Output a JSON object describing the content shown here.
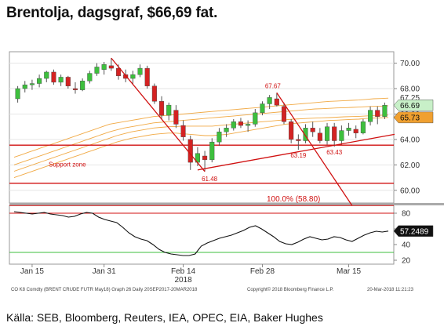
{
  "title": "Brentolja, dagsgraf, $66,69 fat.",
  "source": "Källa: SEB, Bloomberg, Reuters, IEA, OPEC, EIA, Baker Hughes",
  "footer": {
    "left": "CO K8 Comdty (BRENT CRUDE FUTR  May18) Graph 26  Daily 20SEP2017-20MAR2018",
    "center": "Copyright© 2018 Bloomberg Finance L.P.",
    "right": "20-Mar-2018 11:21:23"
  },
  "colors": {
    "up": "#3dbf3d",
    "down": "#d42222",
    "trend": "#d01010",
    "ma": "#f0a030",
    "osc": "#111111",
    "price_tag_bg": "#c8f0c8",
    "ma_tag_bg": "#f0a030",
    "osc_tag_bg": "#111111"
  },
  "chart_data": [
    {
      "type": "candlestick",
      "ylim": [
        59.0,
        70.9
      ],
      "y_ticks": [
        "70.00",
        "68.00",
        "66.00",
        "64.00",
        "62.00",
        "60.00"
      ],
      "x_tick_labels": [
        "Jan 15",
        "Jan 31",
        "Feb 14",
        "Feb 28",
        "Mar 15"
      ],
      "x_sublabel": "2018",
      "last_price_label": "66.69",
      "ma_label": "65.73",
      "ma_label_2": "67.25",
      "annotations": [
        {
          "text": "67.67",
          "value": 67.67
        },
        {
          "text": "61.48",
          "value": 61.48
        },
        {
          "text": "63.19",
          "value": 63.19
        },
        {
          "text": "63.43",
          "value": 63.43
        },
        {
          "text": "Support zone",
          "value": 62.0
        },
        {
          "text": "100.0% (58.80)",
          "value": 58.8
        }
      ],
      "horizontal_lines": [
        63.55,
        60.55
      ],
      "candles": [
        {
          "o": 67.2,
          "h": 68.2,
          "l": 66.9,
          "c": 68.0
        },
        {
          "o": 68.0,
          "h": 68.6,
          "l": 67.7,
          "c": 68.3
        },
        {
          "o": 68.3,
          "h": 68.7,
          "l": 67.9,
          "c": 68.4
        },
        {
          "o": 68.4,
          "h": 69.1,
          "l": 68.1,
          "c": 68.8
        },
        {
          "o": 68.8,
          "h": 69.4,
          "l": 68.5,
          "c": 69.3
        },
        {
          "o": 69.3,
          "h": 69.5,
          "l": 68.3,
          "c": 68.5
        },
        {
          "o": 68.5,
          "h": 69.1,
          "l": 68.2,
          "c": 68.9
        },
        {
          "o": 68.9,
          "h": 69.0,
          "l": 68.0,
          "c": 68.2
        },
        {
          "o": 68.0,
          "h": 68.5,
          "l": 67.6,
          "c": 67.9
        },
        {
          "o": 67.9,
          "h": 68.8,
          "l": 67.8,
          "c": 68.6
        },
        {
          "o": 68.6,
          "h": 69.4,
          "l": 68.4,
          "c": 69.2
        },
        {
          "o": 69.2,
          "h": 70.0,
          "l": 69.0,
          "c": 69.7
        },
        {
          "o": 69.5,
          "h": 70.1,
          "l": 69.1,
          "c": 69.9
        },
        {
          "o": 69.8,
          "h": 70.4,
          "l": 69.4,
          "c": 69.6
        },
        {
          "o": 69.6,
          "h": 69.9,
          "l": 68.7,
          "c": 69.0
        },
        {
          "o": 69.1,
          "h": 69.5,
          "l": 68.5,
          "c": 68.8
        },
        {
          "o": 68.8,
          "h": 69.4,
          "l": 68.3,
          "c": 69.1
        },
        {
          "o": 69.1,
          "h": 69.9,
          "l": 68.9,
          "c": 69.6
        },
        {
          "o": 69.6,
          "h": 69.8,
          "l": 68.0,
          "c": 68.2
        },
        {
          "o": 68.2,
          "h": 68.4,
          "l": 66.8,
          "c": 67.0
        },
        {
          "o": 67.0,
          "h": 67.4,
          "l": 65.6,
          "c": 65.9
        },
        {
          "o": 65.9,
          "h": 66.9,
          "l": 65.5,
          "c": 66.7
        },
        {
          "o": 66.3,
          "h": 66.7,
          "l": 64.9,
          "c": 65.2
        },
        {
          "o": 65.1,
          "h": 65.5,
          "l": 63.9,
          "c": 64.2
        },
        {
          "o": 64.0,
          "h": 64.3,
          "l": 61.6,
          "c": 62.2
        },
        {
          "o": 62.2,
          "h": 63.4,
          "l": 61.9,
          "c": 62.9
        },
        {
          "o": 62.7,
          "h": 63.1,
          "l": 61.48,
          "c": 62.4
        },
        {
          "o": 62.4,
          "h": 64.1,
          "l": 62.2,
          "c": 63.8
        },
        {
          "o": 63.8,
          "h": 64.9,
          "l": 63.5,
          "c": 64.6
        },
        {
          "o": 64.6,
          "h": 65.2,
          "l": 64.2,
          "c": 64.9
        },
        {
          "o": 64.9,
          "h": 65.6,
          "l": 64.7,
          "c": 65.4
        },
        {
          "o": 65.4,
          "h": 65.7,
          "l": 64.9,
          "c": 65.1
        },
        {
          "o": 65.1,
          "h": 65.5,
          "l": 64.6,
          "c": 65.2
        },
        {
          "o": 65.2,
          "h": 66.4,
          "l": 65.0,
          "c": 66.1
        },
        {
          "o": 66.1,
          "h": 67.0,
          "l": 65.9,
          "c": 66.8
        },
        {
          "o": 66.8,
          "h": 67.5,
          "l": 66.4,
          "c": 67.3
        },
        {
          "o": 67.2,
          "h": 67.67,
          "l": 66.6,
          "c": 66.7
        },
        {
          "o": 66.6,
          "h": 66.9,
          "l": 65.2,
          "c": 65.4
        },
        {
          "o": 65.4,
          "h": 65.6,
          "l": 63.7,
          "c": 64.0
        },
        {
          "o": 64.0,
          "h": 64.4,
          "l": 63.19,
          "c": 63.9
        },
        {
          "o": 63.9,
          "h": 65.2,
          "l": 63.7,
          "c": 64.9
        },
        {
          "o": 64.9,
          "h": 65.4,
          "l": 64.2,
          "c": 64.6
        },
        {
          "o": 64.5,
          "h": 64.9,
          "l": 63.7,
          "c": 63.9
        },
        {
          "o": 63.9,
          "h": 65.3,
          "l": 63.6,
          "c": 65.0
        },
        {
          "o": 65.0,
          "h": 65.3,
          "l": 63.43,
          "c": 63.9
        },
        {
          "o": 63.9,
          "h": 65.1,
          "l": 63.6,
          "c": 64.7
        },
        {
          "o": 64.7,
          "h": 65.3,
          "l": 64.3,
          "c": 64.9
        },
        {
          "o": 64.8,
          "h": 65.1,
          "l": 64.1,
          "c": 64.5
        },
        {
          "o": 64.5,
          "h": 65.6,
          "l": 64.4,
          "c": 65.4
        },
        {
          "o": 65.4,
          "h": 66.6,
          "l": 65.1,
          "c": 66.3
        },
        {
          "o": 66.3,
          "h": 66.6,
          "l": 65.2,
          "c": 65.8
        },
        {
          "o": 65.8,
          "h": 66.9,
          "l": 65.6,
          "c": 66.69
        }
      ],
      "moving_averages": [
        [
          62.6,
          62.8,
          63.0,
          63.2,
          63.4,
          63.6,
          63.8,
          64.0,
          64.2,
          64.4,
          64.6,
          64.8,
          65.0,
          65.2,
          65.3,
          65.4,
          65.5,
          65.6,
          65.7,
          65.8,
          65.85,
          65.9,
          65.95,
          66.0,
          66.05,
          66.1,
          66.15,
          66.2,
          66.25,
          66.3,
          66.35,
          66.4,
          66.45,
          66.5,
          66.55,
          66.6,
          66.65,
          66.7,
          66.75,
          66.8,
          66.85,
          66.9,
          66.95,
          67.0,
          67.02,
          67.05,
          67.08,
          67.1,
          67.15,
          67.2,
          67.22,
          67.25
        ],
        [
          62.0,
          62.2,
          62.4,
          62.6,
          62.8,
          63.0,
          63.2,
          63.4,
          63.6,
          63.8,
          64.0,
          64.2,
          64.4,
          64.6,
          64.75,
          64.9,
          65.0,
          65.1,
          65.2,
          65.3,
          65.35,
          65.4,
          65.45,
          65.5,
          65.55,
          65.6,
          65.65,
          65.7,
          65.75,
          65.8,
          65.85,
          65.9,
          65.95,
          66.0,
          66.05,
          66.1,
          66.15,
          66.2,
          66.25,
          66.3,
          66.35,
          66.4,
          66.42,
          66.45,
          66.48,
          66.5,
          66.52,
          66.55,
          66.58,
          66.6,
          66.62,
          66.65
        ],
        [
          61.5,
          61.7,
          61.9,
          62.1,
          62.3,
          62.5,
          62.7,
          62.9,
          63.1,
          63.3,
          63.5,
          63.7,
          63.9,
          64.1,
          64.3,
          64.45,
          64.6,
          64.7,
          64.8,
          64.9,
          64.95,
          65.0,
          65.02,
          65.05,
          65.05,
          65.05,
          65.05,
          65.05,
          65.1,
          65.15,
          65.2,
          65.25,
          65.3,
          65.35,
          65.4,
          65.45,
          65.5,
          65.55,
          65.6,
          65.62,
          65.65,
          65.68,
          65.7,
          65.72,
          65.75,
          65.78,
          65.8,
          65.82,
          65.85,
          65.88,
          65.9,
          65.92
        ],
        [
          61.0,
          61.2,
          61.4,
          61.6,
          61.8,
          62.0,
          62.2,
          62.4,
          62.6,
          62.8,
          63.0,
          63.2,
          63.4,
          63.6,
          63.8,
          63.95,
          64.1,
          64.2,
          64.3,
          64.4,
          64.45,
          64.5,
          64.5,
          64.45,
          64.4,
          64.35,
          64.3,
          64.3,
          64.35,
          64.4,
          64.5,
          64.6,
          64.7,
          64.8,
          64.9,
          65.0,
          65.1,
          65.2,
          65.25,
          65.3,
          65.35,
          65.4,
          65.45,
          65.5,
          65.52,
          65.55,
          65.58,
          65.6,
          65.65,
          65.68,
          65.7,
          65.73
        ]
      ]
    },
    {
      "type": "line",
      "name": "",
      "ylim": [
        15,
        90
      ],
      "y_ticks": [
        "80",
        "60",
        "40",
        "20"
      ],
      "reference_lines": [
        80,
        30
      ],
      "last_value_label": "57.2489",
      "values": [
        82,
        81,
        80,
        79,
        80,
        81,
        79,
        78,
        77,
        75,
        76,
        79,
        81,
        80,
        75,
        72,
        70,
        68,
        62,
        55,
        50,
        47,
        45,
        40,
        34,
        30,
        28,
        27,
        26,
        26,
        28,
        38,
        42,
        45,
        48,
        50,
        52,
        55,
        58,
        62,
        64,
        60,
        55,
        50,
        44,
        41,
        40,
        43,
        47,
        50,
        48,
        46,
        47,
        50,
        49,
        46,
        44,
        48,
        52,
        55,
        57,
        56,
        57.2489
      ]
    }
  ]
}
